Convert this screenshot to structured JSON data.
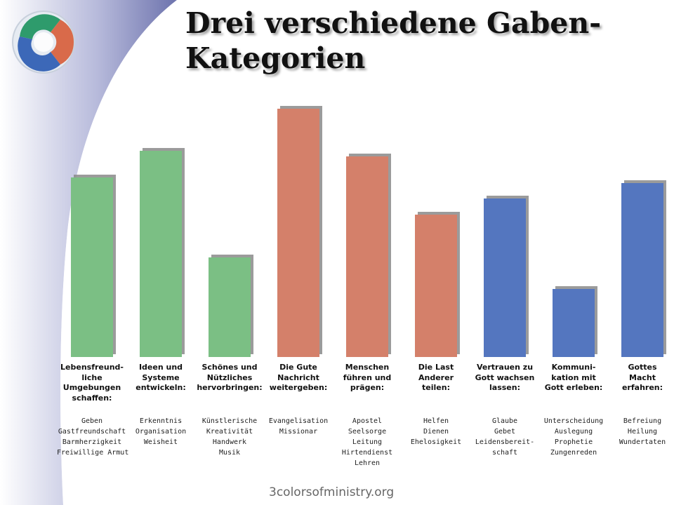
{
  "slide": {
    "title_lines": [
      "Drei verschiedene Gaben-",
      "Kategorien"
    ],
    "footer": "3colorsofministry.org"
  },
  "colors": {
    "green": "#7bbf84",
    "red": "#d4806a",
    "blue": "#5476bf",
    "band": "#7a80b4"
  },
  "logo": {
    "icon": "three-colors-logo-icon"
  },
  "chart_data": {
    "type": "bar",
    "ylim": [
      0,
      360
    ],
    "grid": false,
    "categories": [
      {
        "lines": [
          "Lebensfreund-",
          "liche",
          "Umgebungen",
          "schaffen:"
        ],
        "value": 256,
        "color": "green",
        "gifts": [
          "Geben",
          "Gastfreundschaft",
          "Barmherzigkeit",
          "Freiwillige Armut"
        ]
      },
      {
        "lines": [
          "Ideen und",
          "Systeme",
          "entwickeln:"
        ],
        "value": 294,
        "color": "green",
        "gifts": [
          "Erkenntnis",
          "Organisation",
          "Weisheit"
        ]
      },
      {
        "lines": [
          "Schönes und",
          "Nützliches",
          "hervorbringen:"
        ],
        "value": 142,
        "color": "green",
        "gifts": [
          "Künstlerische",
          "Kreativität",
          "Handwerk",
          "Musik"
        ]
      },
      {
        "lines": [
          "Die Gute",
          "Nachricht",
          "weitergeben:"
        ],
        "value": 354,
        "color": "red",
        "gifts": [
          "Evangelisation",
          "Missionar"
        ]
      },
      {
        "lines": [
          "Menschen",
          "führen und",
          "prägen:"
        ],
        "value": 286,
        "color": "red",
        "gifts": [
          "Apostel",
          "Seelsorge",
          "Leitung",
          "Hirtendienst",
          "Lehren"
        ]
      },
      {
        "lines": [
          "Die Last",
          "Anderer",
          "teilen:"
        ],
        "value": 203,
        "color": "red",
        "gifts": [
          "Helfen",
          "Dienen",
          "Ehelosigkeit"
        ]
      },
      {
        "lines": [
          "Vertrauen zu",
          "Gott wachsen",
          "lassen:"
        ],
        "value": 226,
        "color": "blue",
        "gifts": [
          "Glaube",
          "Gebet",
          "Leidensbereit-",
          "schaft"
        ]
      },
      {
        "lines": [
          "Kommuni-",
          "kation mit",
          "Gott erleben:"
        ],
        "value": 97,
        "color": "blue",
        "gifts": [
          "Unterscheidung",
          "Auslegung",
          "Prophetie",
          "Zungenreden"
        ]
      },
      {
        "lines": [
          "Gottes",
          "Macht",
          "erfahren:"
        ],
        "value": 248,
        "color": "blue",
        "gifts": [
          "Befreiung",
          "Heilung",
          "Wundertaten"
        ]
      }
    ]
  }
}
